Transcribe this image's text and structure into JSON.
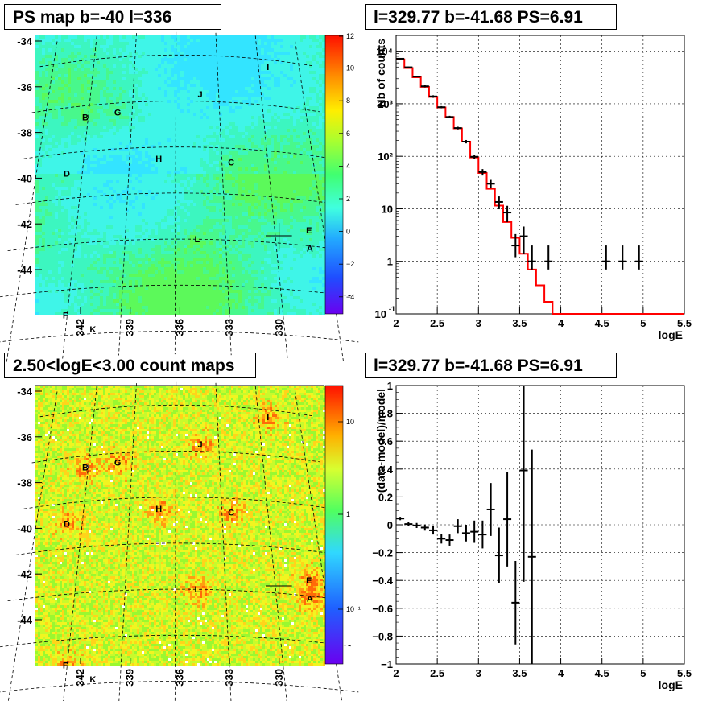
{
  "titles": {
    "map_ps": "PS map b=-40 l=336",
    "spectrum": "l=329.77 b=-41.68 PS=6.91",
    "map_counts": "2.50<logE<3.00 count maps",
    "residual": "l=329.77 b=-41.68 PS=6.91"
  },
  "map_axes": {
    "y_ticks": [
      "-34",
      "-36",
      "-38",
      "-40",
      "-42",
      "-44"
    ],
    "x_ticks": [
      "342",
      "339",
      "336",
      "333",
      "330"
    ]
  },
  "sources": [
    {
      "name": "I",
      "lon": 329.3,
      "lat": -34.3
    },
    {
      "name": "J",
      "lon": 334.3,
      "lat": -35.7
    },
    {
      "name": "B",
      "lon": 342.2,
      "lat": -36.5
    },
    {
      "name": "G",
      "lon": 340.0,
      "lat": -36.4
    },
    {
      "name": "H",
      "lon": 337.1,
      "lat": -38.5
    },
    {
      "name": "C",
      "lon": 332.4,
      "lat": -38.6
    },
    {
      "name": "D",
      "lon": 343.0,
      "lat": -38.9
    },
    {
      "name": "E",
      "lon": 327.9,
      "lat": -41.3
    },
    {
      "name": "L",
      "lon": 334.7,
      "lat": -42.0
    },
    {
      "name": "A",
      "lon": 328.0,
      "lat": -42.1
    },
    {
      "name": "F",
      "lon": 342.1,
      "lat": -45.1
    },
    {
      "name": "K",
      "lon": 340.5,
      "lat": -45.8
    }
  ],
  "marker": {
    "lon": 329.77,
    "lat": -41.68
  },
  "colorbar_ps": {
    "ticks": [
      "12",
      "10",
      "8",
      "6",
      "4",
      "2",
      "0",
      "−2",
      "−4"
    ]
  },
  "colorbar_counts": {
    "ticks": [
      "10",
      "1",
      "10⁻¹"
    ]
  },
  "chart_data": [
    {
      "type": "line",
      "title": "l=329.77 b=-41.68 PS=6.91",
      "xlabel": "logE",
      "ylabel": "Nb of counts",
      "xlim": [
        2,
        5.5
      ],
      "ylim": [
        0.1,
        20000
      ],
      "y_scale": "log",
      "grid": true,
      "x_ticks": [
        "2",
        "2.5",
        "3",
        "3.5",
        "4",
        "4.5",
        "5",
        "5.5"
      ],
      "y_ticks": [
        "10",
        "1",
        "10",
        "10²",
        "10³",
        "10⁴"
      ],
      "y_tick_exponents": [
        "-1",
        "",
        "",
        "",
        "",
        ""
      ],
      "series": [
        {
          "type": "step",
          "color": "#ff0000",
          "bin_width": 0.1,
          "x": [
            2.0,
            2.1,
            2.2,
            2.3,
            2.4,
            2.5,
            2.6,
            2.7,
            2.8,
            2.9,
            3.0,
            3.1,
            3.2,
            3.3,
            3.4,
            3.5,
            3.6,
            3.7,
            3.8,
            3.9,
            4.0,
            4.1,
            4.2,
            4.3,
            4.4,
            4.5,
            4.6,
            4.7,
            4.8,
            4.9,
            5.0,
            5.1,
            5.2,
            5.3,
            5.4
          ],
          "values": [
            7000,
            4800,
            3200,
            2100,
            1350,
            850,
            560,
            340,
            190,
            95,
            48,
            24,
            11.5,
            5.6,
            2.8,
            1.4,
            0.7,
            0.35,
            0.17,
            0.1,
            0.1,
            0.1,
            0.1,
            0.1,
            0.1,
            0.1,
            0.1,
            0.1,
            0.1,
            0.1,
            0.1,
            0.1,
            0.1,
            0.1,
            0.1
          ]
        },
        {
          "type": "errorbar",
          "color": "#000000",
          "x": [
            2.05,
            2.15,
            2.25,
            2.35,
            2.45,
            2.55,
            2.65,
            2.75,
            2.85,
            2.95,
            3.05,
            3.15,
            3.25,
            3.35,
            3.45,
            3.55,
            3.65,
            3.85,
            4.55,
            4.75,
            4.95
          ],
          "values": [
            7200,
            4950,
            3300,
            2150,
            1380,
            860,
            560,
            345,
            190,
            98,
            50,
            30,
            13.5,
            8.5,
            2.0,
            3.0,
            1.0,
            1.0,
            1.0,
            1.0,
            1.0
          ],
          "err_low": [
            7000,
            4800,
            3200,
            2050,
            1300,
            820,
            530,
            325,
            176,
            88,
            43,
            24.5,
            9.8,
            5.6,
            1.2,
            1.4,
            0.7,
            0.7,
            0.7,
            0.7,
            0.7
          ],
          "err_high": [
            7400,
            5100,
            3400,
            2250,
            1450,
            900,
            590,
            365,
            204,
            108,
            57,
            35.5,
            17.2,
            11.4,
            3.3,
            4.6,
            2.0,
            2.0,
            2.0,
            2.0,
            2.0
          ]
        }
      ]
    },
    {
      "type": "scatter",
      "title": "l=329.77 b=-41.68 PS=6.91",
      "xlabel": "logE",
      "ylabel": "(data-model)/model",
      "xlim": [
        2,
        5.5
      ],
      "ylim": [
        -1,
        1
      ],
      "grid": true,
      "x_ticks": [
        "2",
        "2.5",
        "3",
        "3.5",
        "4",
        "4.5",
        "5",
        "5.5"
      ],
      "y_ticks": [
        "1",
        "0.8",
        "0.6",
        "0.4",
        "0.2",
        "0",
        "−0.2",
        "−0.4",
        "−0.6",
        "−0.8",
        "−1"
      ],
      "series": [
        {
          "type": "errorbar",
          "color": "#000000",
          "x": [
            2.05,
            2.15,
            2.25,
            2.35,
            2.45,
            2.55,
            2.65,
            2.75,
            2.85,
            2.95,
            3.05,
            3.15,
            3.25,
            3.35,
            3.45,
            3.55,
            3.65
          ],
          "values": [
            0.045,
            0.005,
            -0.005,
            -0.02,
            -0.04,
            -0.1,
            -0.11,
            -0.01,
            -0.06,
            -0.05,
            -0.07,
            0.11,
            -0.22,
            0.04,
            -0.56,
            0.39,
            -0.23
          ],
          "err": [
            0.012,
            0.015,
            0.018,
            0.022,
            0.03,
            0.035,
            0.04,
            0.05,
            0.06,
            0.08,
            0.1,
            0.19,
            0.2,
            0.34,
            0.3,
            0.8,
            0.77
          ]
        }
      ]
    }
  ]
}
